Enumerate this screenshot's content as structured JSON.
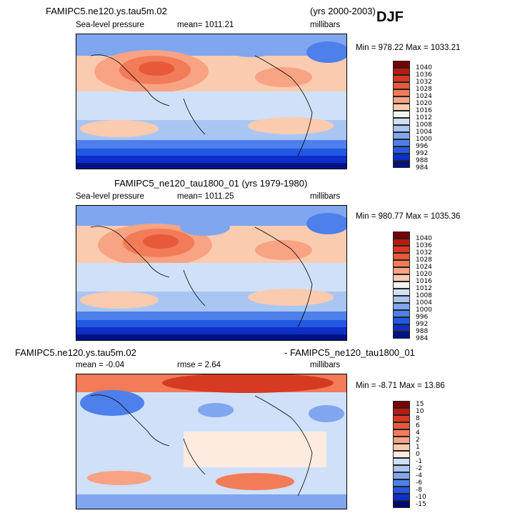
{
  "header": {
    "title_left": "FAMIPC5.ne120.ys.tau5m.02",
    "title_years": "(yrs 2000-2003)",
    "season": "DJF"
  },
  "panels": [
    {
      "title_center": "",
      "title_right": "",
      "field": "Sea-level pressure",
      "stat_label": "mean= 1011.21",
      "rmse_label": "",
      "units": "millibars",
      "minmax": "Min = 978.22 Max = 1033.21",
      "colorbar_labels": [
        "1040",
        "1036",
        "1032",
        "1028",
        "1024",
        "1020",
        "1016",
        "1012",
        "1008",
        "1004",
        "1000",
        "996",
        "992",
        "988",
        "984"
      ]
    },
    {
      "title_center": "FAMIPC5_ne120_tau1800_01 (yrs 1979-1980)",
      "title_right": "",
      "field": "Sea-level pressure",
      "stat_label": "mean= 1011.25",
      "rmse_label": "",
      "units": "millibars",
      "minmax": "Min = 980.77 Max = 1035.36",
      "colorbar_labels": [
        "1040",
        "1036",
        "1032",
        "1028",
        "1024",
        "1020",
        "1016",
        "1012",
        "1008",
        "1004",
        "1000",
        "996",
        "992",
        "988",
        "984"
      ]
    },
    {
      "title_left": "FAMIPC5.ne120.ys.tau5m.02",
      "title_right": "- FAMIPC5_ne120_tau1800_01",
      "field": "",
      "stat_label": "mean =   -0.04",
      "rmse_label": "rmse =     2.64",
      "units": "millibars",
      "minmax": "Min =   -8.71 Max =   13.86",
      "colorbar_labels": [
        "15",
        "10",
        "8",
        "6",
        "4",
        "2",
        "1",
        "0",
        "-1",
        "-2",
        "-4",
        "-6",
        "-8",
        "-10",
        "-15"
      ]
    }
  ],
  "colors": {
    "abs_scale": [
      "#7a0000",
      "#b81c10",
      "#d63a22",
      "#e8593a",
      "#f27b58",
      "#f8a383",
      "#fbcbb0",
      "#f4f2ee",
      "#cfe0f8",
      "#a9c6f3",
      "#7fa6ee",
      "#4d80ea",
      "#2358e3",
      "#0d2fc8",
      "#001283",
      "#000a5a"
    ],
    "diff_scale": [
      "#7a0000",
      "#b81c10",
      "#d63a22",
      "#e8593a",
      "#f27b58",
      "#f8a383",
      "#fbcbb0",
      "#fdebe0",
      "#f4f2ee",
      "#cfe0f8",
      "#a9c6f3",
      "#7fa6ee",
      "#4d80ea",
      "#2358e3",
      "#0d2fc8",
      "#000a6e"
    ]
  },
  "chart_data": [
    {
      "type": "heatmap",
      "title": "FAMIPC5.ne120.ys.tau5m.02 (yrs 2000-2003) DJF",
      "variable": "Sea-level pressure",
      "units": "millibars",
      "mean": 1011.21,
      "min": 978.22,
      "max": 1033.21,
      "contour_levels": [
        984,
        988,
        992,
        996,
        1000,
        1004,
        1008,
        1012,
        1016,
        1020,
        1024,
        1028,
        1032,
        1036,
        1040
      ]
    },
    {
      "type": "heatmap",
      "title": "FAMIPC5_ne120_tau1800_01 (yrs 1979-1980)",
      "variable": "Sea-level pressure",
      "units": "millibars",
      "mean": 1011.25,
      "min": 980.77,
      "max": 1035.36,
      "contour_levels": [
        984,
        988,
        992,
        996,
        1000,
        1004,
        1008,
        1012,
        1016,
        1020,
        1024,
        1028,
        1032,
        1036,
        1040
      ]
    },
    {
      "type": "heatmap",
      "title": "FAMIPC5.ne120.ys.tau5m.02 - FAMIPC5_ne120_tau1800_01",
      "units": "millibars",
      "mean": -0.04,
      "rmse": 2.64,
      "min": -8.71,
      "max": 13.86,
      "contour_levels": [
        -15,
        -10,
        -8,
        -6,
        -4,
        -2,
        -1,
        0,
        1,
        2,
        4,
        6,
        8,
        10,
        15
      ]
    }
  ]
}
